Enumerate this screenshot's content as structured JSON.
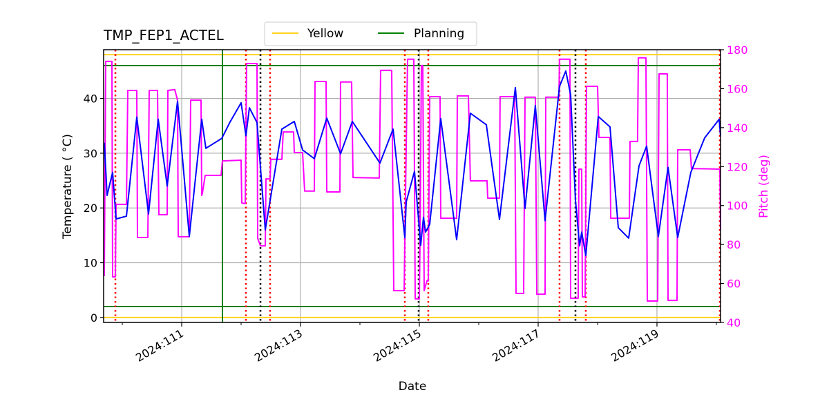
{
  "chart_data": {
    "type": "line",
    "title": "TMP_FEP1_ACTEL",
    "xlabel": "Date",
    "ylabel": "Temperature ($^\\circ$C)",
    "ylabel_display": "Temperature ( °C)",
    "y2label": "Pitch (deg)",
    "xlim": [
      "2024:109.686",
      "2024:120.070"
    ],
    "ylim": [
      -0.9,
      48.9
    ],
    "y2lim": [
      40,
      180
    ],
    "x_ticks": [
      "2024:111",
      "2024:113",
      "2024:115",
      "2024:117",
      "2024:119"
    ],
    "x_minor_ticks": [
      "2024:110",
      "2024:112",
      "2024:114",
      "2024:116",
      "2024:118",
      "2024:120"
    ],
    "y_ticks": [
      0,
      10,
      20,
      30,
      40
    ],
    "y2_ticks": [
      40,
      60,
      80,
      100,
      120,
      140,
      160,
      180
    ],
    "grid": true,
    "legend": {
      "placement": "top-center",
      "entries": [
        {
          "name": "Yellow",
          "color": "#ffd21f"
        },
        {
          "name": "Planning",
          "color": "#008000"
        }
      ]
    },
    "colors": {
      "temperature": "#0000ff",
      "pitch": "#ff00ff",
      "yellow": "#ffd21f",
      "planning": "#008000",
      "red_marker": "#ff0000",
      "black_marker": "#000000"
    },
    "hlines": {
      "yellow": [
        48,
        0
      ],
      "planning": [
        46,
        2
      ]
    },
    "vlines": {
      "planning": [
        "2024:111.686"
      ],
      "red_dotted": [
        "2024:109.884",
        "2024:112.081",
        "2024:112.488",
        "2024:114.756",
        "2024:115.151",
        "2024:117.360",
        "2024:117.802",
        "2024:120.058"
      ],
      "black_dotted": [
        "2024:112.326",
        "2024:114.988",
        "2024:117.628"
      ]
    },
    "series": [
      {
        "axis": "left",
        "color": "#0000ff",
        "points": [
          [
            "2024:109.698",
            31.9
          ],
          [
            "2024:109.744",
            22.3
          ],
          [
            "2024:109.837",
            26.5
          ],
          [
            "2024:109.895",
            18.0
          ],
          [
            "2024:110.070",
            18.5
          ],
          [
            "2024:110.244",
            36.6
          ],
          [
            "2024:110.442",
            18.9
          ],
          [
            "2024:110.605",
            36.2
          ],
          [
            "2024:110.756",
            24.0
          ],
          [
            "2024:110.930",
            39.5
          ],
          [
            "2024:111.128",
            14.8
          ],
          [
            "2024:111.337",
            36.2
          ],
          [
            "2024:111.407",
            30.9
          ],
          [
            "2024:111.674",
            32.7
          ],
          [
            "2024:111.814",
            35.7
          ],
          [
            "2024:112.000",
            39.2
          ],
          [
            "2024:112.081",
            33.2
          ],
          [
            "2024:112.140",
            38.3
          ],
          [
            "2024:112.267",
            35.6
          ],
          [
            "2024:112.407",
            16.0
          ],
          [
            "2024:112.686",
            34.4
          ],
          [
            "2024:112.895",
            35.8
          ],
          [
            "2024:113.035",
            30.6
          ],
          [
            "2024:113.233",
            29.0
          ],
          [
            "2024:113.442",
            36.4
          ],
          [
            "2024:113.674",
            29.9
          ],
          [
            "2024:113.872",
            35.8
          ],
          [
            "2024:114.337",
            28.2
          ],
          [
            "2024:114.558",
            34.4
          ],
          [
            "2024:114.756",
            14.6
          ],
          [
            "2024:114.779",
            21.1
          ],
          [
            "2024:114.919",
            26.7
          ],
          [
            "2024:115.023",
            13.2
          ],
          [
            "2024:115.070",
            18.3
          ],
          [
            "2024:115.105",
            15.6
          ],
          [
            "2024:115.174",
            17.0
          ],
          [
            "2024:115.360",
            36.3
          ],
          [
            "2024:115.628",
            14.2
          ],
          [
            "2024:115.860",
            37.3
          ],
          [
            "2024:116.128",
            35.2
          ],
          [
            "2024:116.349",
            17.9
          ],
          [
            "2024:116.616",
            42.0
          ],
          [
            "2024:116.779",
            19.9
          ],
          [
            "2024:116.953",
            38.7
          ],
          [
            "2024:117.116",
            17.7
          ],
          [
            "2024:117.360",
            42.2
          ],
          [
            "2024:117.465",
            45.0
          ],
          [
            "2024:117.547",
            40.7
          ],
          [
            "2024:117.628",
            21.4
          ],
          [
            "2024:117.698",
            13.1
          ],
          [
            "2024:117.733",
            15.6
          ],
          [
            "2024:117.802",
            11.3
          ],
          [
            "2024:118.012",
            36.7
          ],
          [
            "2024:118.209",
            34.8
          ],
          [
            "2024:118.349",
            16.4
          ],
          [
            "2024:118.523",
            14.5
          ],
          [
            "2024:118.698",
            27.7
          ],
          [
            "2024:118.826",
            31.3
          ],
          [
            "2024:119.023",
            14.8
          ],
          [
            "2024:119.186",
            27.4
          ],
          [
            "2024:119.349",
            14.6
          ],
          [
            "2024:119.570",
            26.5
          ],
          [
            "2024:119.802",
            32.8
          ],
          [
            "2024:120.047",
            36.2
          ],
          [
            "2024:120.070",
            33.2
          ]
        ]
      },
      {
        "axis": "right",
        "color": "#ff00ff",
        "points": [
          [
            "2024:109.698",
            63.8
          ],
          [
            "2024:109.721",
            174.0
          ],
          [
            "2024:109.826",
            174.0
          ],
          [
            "2024:109.837",
            63.4
          ],
          [
            "2024:109.884",
            63.4
          ],
          [
            "2024:109.895",
            100.6
          ],
          [
            "2024:110.070",
            100.6
          ],
          [
            "2024:110.093",
            159.1
          ],
          [
            "2024:110.244",
            159.1
          ],
          [
            "2024:110.256",
            83.6
          ],
          [
            "2024:110.430",
            83.6
          ],
          [
            "2024:110.453",
            159.1
          ],
          [
            "2024:110.593",
            159.1
          ],
          [
            "2024:110.616",
            95.3
          ],
          [
            "2024:110.756",
            95.3
          ],
          [
            "2024:110.767",
            159.1
          ],
          [
            "2024:110.884",
            159.5
          ],
          [
            "2024:110.930",
            154.1
          ],
          [
            "2024:110.942",
            84.0
          ],
          [
            "2024:111.128",
            84.0
          ],
          [
            "2024:111.151",
            154.1
          ],
          [
            "2024:111.326",
            154.1
          ],
          [
            "2024:111.337",
            105.2
          ],
          [
            "2024:111.349",
            106.3
          ],
          [
            "2024:111.395",
            115.5
          ],
          [
            "2024:111.663",
            115.5
          ],
          [
            "2024:111.686",
            122.9
          ],
          [
            "2024:112.000",
            123.3
          ],
          [
            "2024:112.012",
            101.3
          ],
          [
            "2024:112.070",
            101.0
          ],
          [
            "2024:112.093",
            172.9
          ],
          [
            "2024:112.267",
            172.9
          ],
          [
            "2024:112.279",
            83.2
          ],
          [
            "2024:112.326",
            79.3
          ],
          [
            "2024:112.407",
            79.3
          ],
          [
            "2024:112.419",
            113.7
          ],
          [
            "2024:112.488",
            113.7
          ],
          [
            "2024:112.500",
            123.7
          ],
          [
            "2024:112.686",
            123.7
          ],
          [
            "2024:112.709",
            137.8
          ],
          [
            "2024:112.884",
            137.8
          ],
          [
            "2024:112.895",
            127.2
          ],
          [
            "2024:113.035",
            127.2
          ],
          [
            "2024:113.070",
            107.4
          ],
          [
            "2024:113.233",
            107.4
          ],
          [
            "2024:113.244",
            163.7
          ],
          [
            "2024:113.430",
            163.7
          ],
          [
            "2024:113.442",
            107.0
          ],
          [
            "2024:113.663",
            107.0
          ],
          [
            "2024:113.674",
            163.4
          ],
          [
            "2024:113.860",
            163.4
          ],
          [
            "2024:113.884",
            114.4
          ],
          [
            "2024:114.326",
            114.1
          ],
          [
            "2024:114.349",
            169.4
          ],
          [
            "2024:114.535",
            169.4
          ],
          [
            "2024:114.570",
            56.3
          ],
          [
            "2024:114.744",
            56.3
          ],
          [
            "2024:114.791",
            154.1
          ],
          [
            "2024:114.802",
            175.1
          ],
          [
            "2024:114.907",
            175.1
          ],
          [
            "2024:114.930",
            52.1
          ],
          [
            "2024:115.000",
            52.1
          ],
          [
            "2024:115.012",
            82.5
          ],
          [
            "2024:115.035",
            171.9
          ],
          [
            "2024:115.058",
            171.9
          ],
          [
            "2024:115.081",
            56.3
          ],
          [
            "2024:115.128",
            61.3
          ],
          [
            "2024:115.151",
            61.3
          ],
          [
            "2024:115.174",
            155.9
          ],
          [
            "2024:115.349",
            155.9
          ],
          [
            "2024:115.360",
            93.5
          ],
          [
            "2024:115.628",
            93.5
          ],
          [
            "2024:115.640",
            156.3
          ],
          [
            "2024:115.826",
            156.3
          ],
          [
            "2024:115.860",
            112.7
          ],
          [
            "2024:116.140",
            112.7
          ],
          [
            "2024:116.151",
            103.8
          ],
          [
            "2024:116.349",
            103.8
          ],
          [
            "2024:116.360",
            155.9
          ],
          [
            "2024:116.605",
            155.9
          ],
          [
            "2024:116.628",
            54.9
          ],
          [
            "2024:116.756",
            54.9
          ],
          [
            "2024:116.779",
            155.6
          ],
          [
            "2024:116.953",
            155.6
          ],
          [
            "2024:116.977",
            54.5
          ],
          [
            "2024:117.116",
            54.5
          ],
          [
            "2024:117.128",
            155.6
          ],
          [
            "2024:117.349",
            155.6
          ],
          [
            "2024:117.360",
            175.1
          ],
          [
            "2024:117.535",
            175.1
          ],
          [
            "2024:117.547",
            52.4
          ],
          [
            "2024:117.674",
            52.4
          ],
          [
            "2024:117.686",
            118.7
          ],
          [
            "2024:117.733",
            118.7
          ],
          [
            "2024:117.744",
            53.1
          ],
          [
            "2024:117.791",
            53.1
          ],
          [
            "2024:117.814",
            161.2
          ],
          [
            "2024:118.000",
            161.2
          ],
          [
            "2024:118.023",
            135.0
          ],
          [
            "2024:118.209",
            135.0
          ],
          [
            "2024:118.221",
            93.5
          ],
          [
            "2024:118.535",
            93.5
          ],
          [
            "2024:118.547",
            132.9
          ],
          [
            "2024:118.674",
            132.9
          ],
          [
            "2024:118.686",
            175.8
          ],
          [
            "2024:118.814",
            175.8
          ],
          [
            "2024:118.837",
            51.0
          ],
          [
            "2024:119.012",
            51.0
          ],
          [
            "2024:119.035",
            167.6
          ],
          [
            "2024:119.174",
            167.6
          ],
          [
            "2024:119.186",
            51.3
          ],
          [
            "2024:119.337",
            51.3
          ],
          [
            "2024:119.349",
            128.6
          ],
          [
            "2024:119.558",
            128.6
          ],
          [
            "2024:119.581",
            119.0
          ],
          [
            "2024:120.058",
            118.7
          ],
          [
            "2024:120.070",
            87.5
          ]
        ]
      }
    ]
  }
}
